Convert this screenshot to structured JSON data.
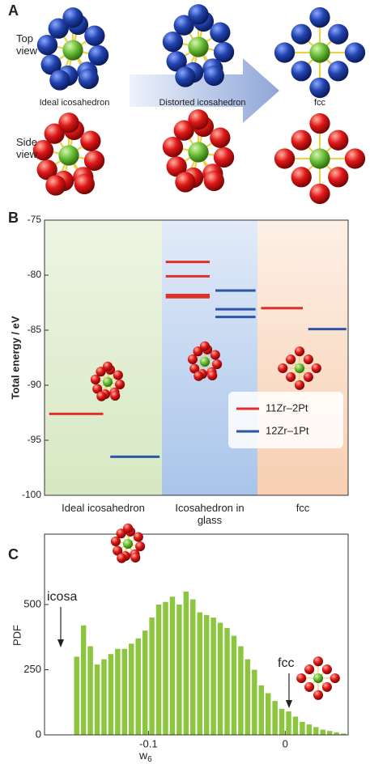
{
  "panel_a": {
    "label": "A",
    "rows": [
      "Top view",
      "Side view"
    ],
    "captions": [
      "Ideal icosahedron",
      "Distorted icosahedron",
      "fcc"
    ]
  },
  "chart_data": [
    {
      "type": "levels",
      "label": "B",
      "ylabel": "Total energy / eV",
      "categories": [
        "Ideal icosahedron",
        "Icosahedron in glass",
        "fcc"
      ],
      "series": [
        {
          "name": "11Zr–2Pt",
          "color": "#e0302a",
          "values": [
            [
              -92.6
            ],
            [
              -78.8,
              -80.1,
              -81.8,
              -82.0
            ],
            [
              -83.0
            ]
          ]
        },
        {
          "name": "12Zr–1Pt",
          "color": "#2a55a8",
          "values": [
            [
              -96.5
            ],
            [
              -81.4,
              -83.1,
              -83.8
            ],
            [
              -84.9
            ]
          ]
        }
      ],
      "ylim": [
        -100,
        -75
      ],
      "yticks": [
        -75,
        -80,
        -85,
        -90,
        -95,
        -100
      ],
      "legend": "right"
    },
    {
      "type": "histogram",
      "label": "C",
      "ylabel": "PDF",
      "xlabel": "w",
      "xlabel_sub": "6",
      "color": "#8cc63f",
      "bins": [
        -0.155,
        -0.15,
        -0.145,
        -0.14,
        -0.135,
        -0.13,
        -0.125,
        -0.12,
        -0.115,
        -0.11,
        -0.105,
        -0.1,
        -0.095,
        -0.09,
        -0.085,
        -0.08,
        -0.075,
        -0.07,
        -0.065,
        -0.06,
        -0.055,
        -0.05,
        -0.045,
        -0.04,
        -0.035,
        -0.03,
        -0.025,
        -0.02,
        -0.015,
        -0.01,
        -0.005,
        0,
        0.005,
        0.01,
        0.015,
        0.02,
        0.025,
        0.03,
        0.035,
        0.04,
        0.045
      ],
      "values": [
        300,
        420,
        340,
        270,
        290,
        310,
        330,
        330,
        350,
        370,
        400,
        450,
        500,
        510,
        530,
        500,
        550,
        520,
        470,
        460,
        450,
        430,
        410,
        380,
        340,
        290,
        250,
        190,
        160,
        130,
        100,
        90,
        70,
        50,
        40,
        30,
        20,
        15,
        10,
        5
      ],
      "xlim": [
        -0.176,
        0.046
      ],
      "ylim": [
        0,
        770
      ],
      "xticks": [
        -0.1,
        0
      ],
      "yticks": [
        0,
        250,
        500
      ],
      "annotations": [
        {
          "text": "icosa"
        },
        {
          "text": "fcc"
        }
      ]
    }
  ]
}
